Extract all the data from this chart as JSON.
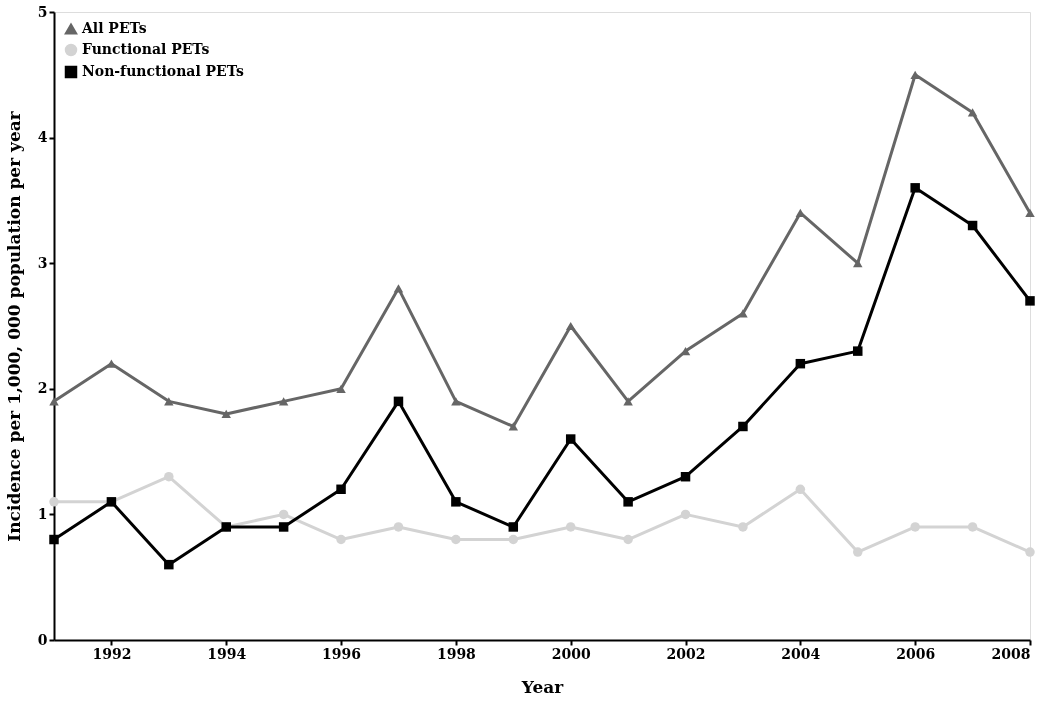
{
  "chart_data": {
    "type": "line",
    "xlabel": "Year",
    "ylabel": "Incidence per 1,000, 000 population per year",
    "x": [
      1991,
      1992,
      1993,
      1994,
      1995,
      1996,
      1997,
      1998,
      1999,
      2000,
      2001,
      2002,
      2003,
      2004,
      2005,
      2006,
      2007,
      2008
    ],
    "series": [
      {
        "name": "All PETs",
        "color": "#666666",
        "marker": "triangle",
        "values": [
          1.9,
          2.2,
          1.9,
          1.8,
          1.9,
          2.0,
          2.8,
          1.9,
          1.7,
          2.5,
          1.9,
          2.3,
          2.6,
          3.4,
          3.0,
          4.5,
          4.2,
          3.4
        ]
      },
      {
        "name": "Functional PETs",
        "color": "#d3d3d3",
        "marker": "circle",
        "values": [
          1.1,
          1.1,
          1.3,
          0.9,
          1.0,
          0.8,
          0.9,
          0.8,
          0.8,
          0.9,
          0.8,
          1.0,
          0.9,
          1.2,
          0.7,
          0.9,
          0.9,
          0.7
        ]
      },
      {
        "name": "Non-functional PETs",
        "color": "#000000",
        "marker": "square",
        "values": [
          0.8,
          1.1,
          0.6,
          0.9,
          0.9,
          1.2,
          1.9,
          1.1,
          0.9,
          1.6,
          1.1,
          1.3,
          1.7,
          2.2,
          2.3,
          3.6,
          3.3,
          2.7
        ]
      }
    ],
    "xlim": [
      1991,
      2008
    ],
    "xticks": [
      1992,
      1994,
      1996,
      1998,
      2000,
      2002,
      2004,
      2006,
      2008
    ],
    "ylim": [
      0,
      5
    ],
    "yticks": [
      0,
      1,
      2,
      3,
      4,
      5
    ],
    "grid": false,
    "legend": "top left",
    "line_style": "solid"
  }
}
